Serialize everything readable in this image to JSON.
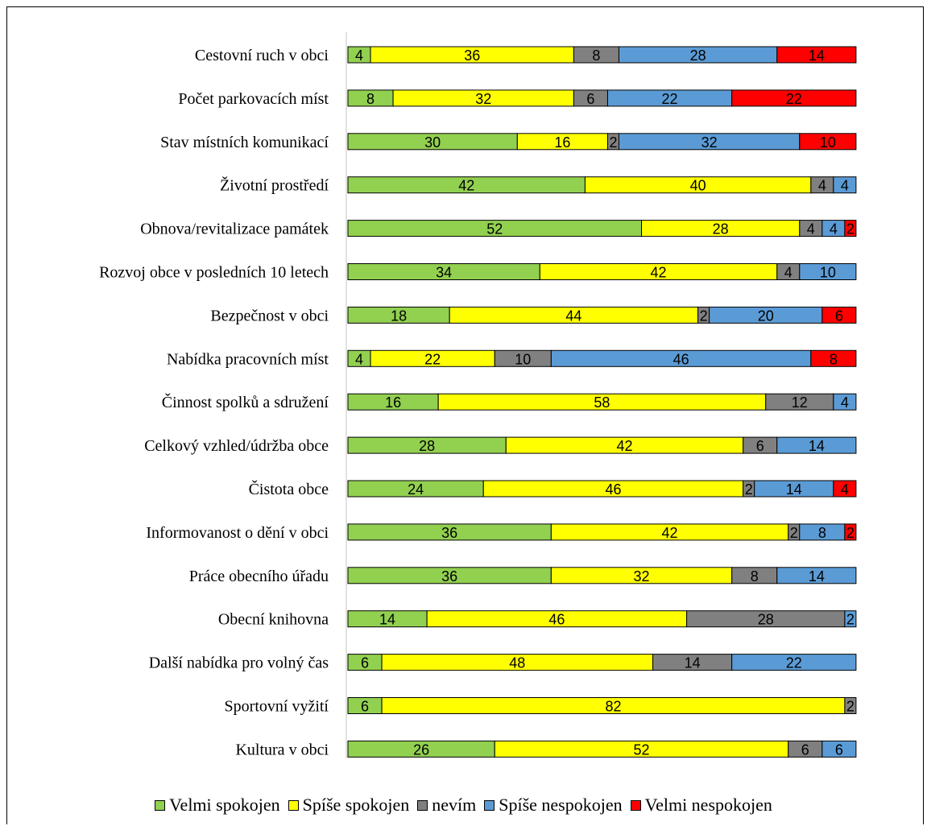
{
  "chart_data": {
    "type": "bar",
    "orientation": "horizontal",
    "stacked": true,
    "categories": [
      "Cestovní ruch v obci",
      "Počet parkovacích míst",
      "Stav místních komunikací",
      "Životní prostředí",
      "Obnova/revitalizace památek",
      "Rozvoj obce v posledních 10 letech",
      "Bezpečnost v obci",
      "Nabídka pracovních míst",
      "Činnost spolků a sdružení",
      "Celkový vzhled/údržba obce",
      "Čistota obce",
      "Informovanost o dění v obci",
      "Práce obecního úřadu",
      "Obecní knihovna",
      "Další nabídka pro volný čas",
      "Sportovní vyžití",
      "Kultura v obci"
    ],
    "series": [
      {
        "name": "Velmi spokojen",
        "color": "#92d050",
        "values": [
          4,
          8,
          30,
          42,
          52,
          34,
          18,
          4,
          16,
          28,
          24,
          36,
          36,
          14,
          6,
          6,
          26
        ]
      },
      {
        "name": "Spíše spokojen",
        "color": "#ffff00",
        "values": [
          36,
          32,
          16,
          40,
          28,
          42,
          44,
          22,
          58,
          42,
          46,
          42,
          32,
          46,
          48,
          82,
          52
        ]
      },
      {
        "name": "nevím",
        "color": "#808080",
        "values": [
          8,
          6,
          2,
          4,
          4,
          4,
          2,
          10,
          12,
          6,
          2,
          2,
          8,
          28,
          14,
          2,
          6
        ]
      },
      {
        "name": "Spíše nespokojen",
        "color": "#5b9bd5",
        "values": [
          28,
          22,
          32,
          4,
          4,
          10,
          20,
          46,
          4,
          14,
          14,
          8,
          14,
          2,
          22,
          0,
          6
        ]
      },
      {
        "name": "Velmi nespokojen",
        "color": "#ff0000",
        "values": [
          14,
          22,
          10,
          0,
          2,
          0,
          6,
          8,
          0,
          0,
          4,
          2,
          0,
          0,
          0,
          0,
          0
        ]
      }
    ],
    "xlim": [
      0,
      100
    ],
    "grid": false,
    "legend_position": "bottom"
  }
}
